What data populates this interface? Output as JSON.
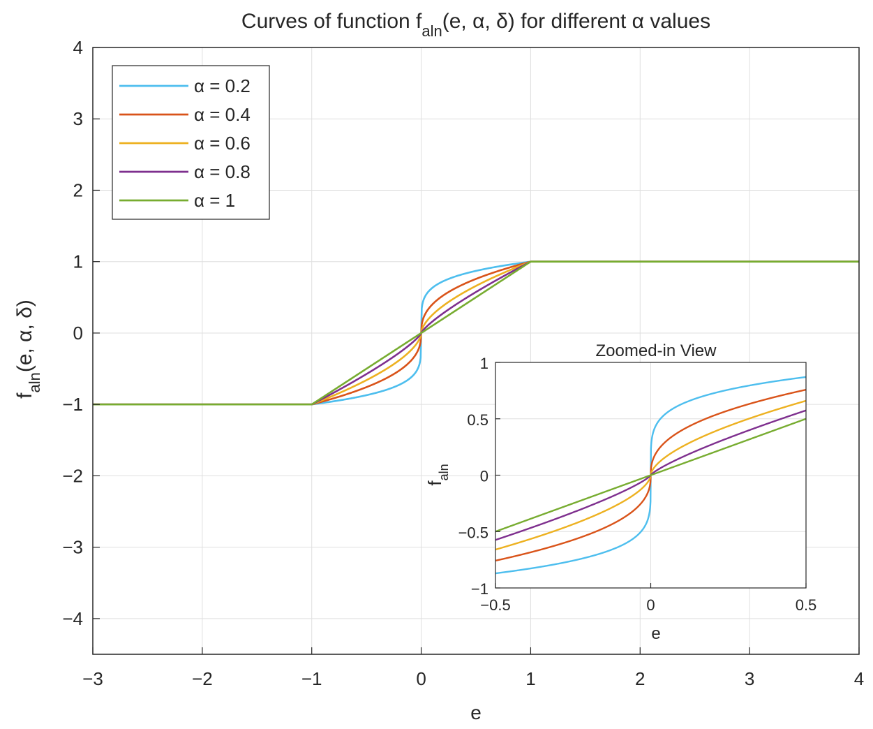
{
  "chart_data": [
    {
      "type": "line",
      "title_prefix": "Curves of function f",
      "title_sub": "aln",
      "title_args": "(e, α, δ) for different α values",
      "xlabel": "e",
      "ylabel_main": "f",
      "ylabel_sub": "aln",
      "ylabel_args": "(e, α, δ)",
      "xlim": [
        -3,
        4
      ],
      "ylim": [
        -4.5,
        4
      ],
      "xticks": [
        -3,
        -2,
        -1,
        0,
        1,
        2,
        3,
        4
      ],
      "xtick_labels": [
        "−3",
        "−2",
        "−1",
        "0",
        "1",
        "2",
        "3",
        "4"
      ],
      "yticks": [
        4,
        3,
        2,
        1,
        0,
        -1,
        -2,
        -3,
        -4
      ],
      "ytick_labels": [
        "4",
        "3",
        "2",
        "1",
        "0",
        "−1",
        "−2",
        "−3",
        "−4"
      ],
      "grid": true,
      "legend_position": "top-left",
      "function": "f = sign(e)·|e|^α for |e| ≤ 1, sign(e) otherwise",
      "series": [
        {
          "name": "α = 0.2",
          "alpha": 0.2,
          "color": "#4DBEEE"
        },
        {
          "name": "α = 0.4",
          "alpha": 0.4,
          "color": "#D95319"
        },
        {
          "name": "α = 0.6",
          "alpha": 0.6,
          "color": "#EDB120"
        },
        {
          "name": "α = 0.8",
          "alpha": 0.8,
          "color": "#7E2F8E"
        },
        {
          "name": "α = 1",
          "alpha": 1.0,
          "color": "#77AC30"
        }
      ]
    },
    {
      "type": "line",
      "title": "Zoomed-in View",
      "xlabel": "e",
      "ylabel_main": "f",
      "ylabel_sub": "aln",
      "xlim": [
        -0.5,
        0.5
      ],
      "ylim": [
        -1,
        1
      ],
      "xticks": [
        -0.5,
        0,
        0.5
      ],
      "xtick_labels": [
        "−0.5",
        "0",
        "0.5"
      ],
      "yticks": [
        1,
        0.5,
        0,
        -0.5,
        -1
      ],
      "ytick_labels": [
        "1",
        "0.5",
        "0",
        "−0.5",
        "−1"
      ],
      "grid": true
    }
  ]
}
